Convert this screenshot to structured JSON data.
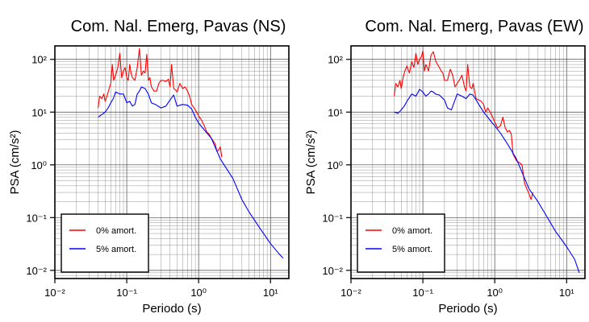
{
  "chart_data": [
    {
      "type": "line",
      "title": "Com. Nal. Emerg, Pavas (NS)",
      "xlabel": "Periodo (s)",
      "ylabel": "PSA (cm/s²)",
      "xscale": "log",
      "yscale": "log",
      "xlim": [
        0.01,
        18
      ],
      "ylim": [
        0.007,
        180
      ],
      "x_ticks": [
        "10⁻²",
        "10⁻¹",
        "10⁰",
        "10¹"
      ],
      "y_ticks": [
        "10⁻²",
        "10⁻¹",
        "10⁰",
        "10¹",
        "10²"
      ],
      "grid": true,
      "legend_position": "bottom-left",
      "series": [
        {
          "name": "0% amort.",
          "color": "#ff0000",
          "x": [
            0.04,
            0.042,
            0.045,
            0.048,
            0.05,
            0.053,
            0.056,
            0.06,
            0.063,
            0.066,
            0.07,
            0.075,
            0.08,
            0.085,
            0.09,
            0.095,
            0.1,
            0.105,
            0.11,
            0.115,
            0.12,
            0.13,
            0.14,
            0.15,
            0.16,
            0.17,
            0.18,
            0.19,
            0.2,
            0.21,
            0.22,
            0.24,
            0.26,
            0.28,
            0.3,
            0.32,
            0.35,
            0.38,
            0.4,
            0.42,
            0.45,
            0.48,
            0.5,
            0.55,
            0.6,
            0.65,
            0.7,
            0.75,
            0.8,
            0.9,
            1.0,
            1.1,
            1.2,
            1.3,
            1.4,
            1.5,
            1.7,
            1.8,
            1.9,
            2.0,
            2.1
          ],
          "y": [
            12,
            20,
            18,
            22,
            16,
            20,
            26,
            35,
            80,
            40,
            50,
            70,
            130,
            45,
            60,
            70,
            45,
            40,
            80,
            55,
            45,
            40,
            70,
            160,
            50,
            60,
            55,
            125,
            40,
            45,
            30,
            25,
            25,
            35,
            40,
            40,
            38,
            42,
            30,
            80,
            28,
            26,
            24,
            35,
            28,
            30,
            25,
            20,
            14,
            11,
            8.5,
            7,
            5.5,
            4.2,
            3.8,
            3.2,
            2.5,
            1.8,
            1.9,
            2.2,
            1.4
          ]
        },
        {
          "name": "5% amort.",
          "color": "#0000ff",
          "x": [
            0.04,
            0.045,
            0.05,
            0.055,
            0.06,
            0.065,
            0.07,
            0.08,
            0.09,
            0.1,
            0.11,
            0.12,
            0.13,
            0.14,
            0.15,
            0.16,
            0.18,
            0.2,
            0.22,
            0.25,
            0.3,
            0.35,
            0.4,
            0.45,
            0.5,
            0.6,
            0.7,
            0.8,
            0.9,
            1.0,
            1.2,
            1.5,
            2.0,
            3.0,
            4.0,
            5.0,
            7.0,
            10.0,
            13.0,
            15.0
          ],
          "y": [
            8,
            9,
            10,
            12,
            15,
            18,
            24,
            22,
            22,
            15,
            16,
            13,
            14,
            22,
            25,
            30,
            28,
            22,
            15,
            14,
            12,
            13,
            17,
            21,
            13,
            14,
            13.5,
            11.5,
            8,
            6.2,
            4.6,
            3.2,
            1.3,
            0.55,
            0.22,
            0.13,
            0.065,
            0.032,
            0.021,
            0.017
          ]
        }
      ]
    },
    {
      "type": "line",
      "title": "Com. Nal. Emerg, Pavas (EW)",
      "xlabel": "Periodo (s)",
      "ylabel": "PSA (cm/s²)",
      "xscale": "log",
      "yscale": "log",
      "xlim": [
        0.01,
        18
      ],
      "ylim": [
        0.007,
        180
      ],
      "x_ticks": [
        "10⁻²",
        "10⁻¹",
        "10⁰",
        "10¹"
      ],
      "y_ticks": [
        "10⁻²",
        "10⁻¹",
        "10⁰",
        "10¹",
        "10²"
      ],
      "grid": true,
      "legend_position": "bottom-left",
      "series": [
        {
          "name": "0% amort.",
          "color": "#ff0000",
          "x": [
            0.04,
            0.042,
            0.045,
            0.048,
            0.05,
            0.053,
            0.056,
            0.06,
            0.065,
            0.07,
            0.075,
            0.08,
            0.085,
            0.09,
            0.095,
            0.1,
            0.105,
            0.11,
            0.115,
            0.12,
            0.13,
            0.14,
            0.15,
            0.16,
            0.17,
            0.18,
            0.19,
            0.2,
            0.22,
            0.24,
            0.26,
            0.28,
            0.3,
            0.32,
            0.35,
            0.38,
            0.4,
            0.42,
            0.45,
            0.48,
            0.5,
            0.55,
            0.6,
            0.65,
            0.7,
            0.75,
            0.8,
            0.9,
            1.0,
            1.1,
            1.2,
            1.3,
            1.4,
            1.5,
            1.6,
            1.7,
            1.8,
            2.0,
            2.2,
            2.4,
            2.6,
            2.8,
            3.0,
            3.2,
            3.4
          ],
          "y": [
            20,
            35,
            30,
            40,
            28,
            45,
            60,
            75,
            55,
            90,
            70,
            130,
            80,
            100,
            110,
            145,
            60,
            80,
            70,
            60,
            120,
            140,
            95,
            80,
            70,
            60,
            55,
            40,
            40,
            65,
            50,
            30,
            35,
            40,
            50,
            30,
            25,
            80,
            30,
            28,
            35,
            18,
            17,
            16,
            14,
            10,
            12,
            9,
            6.5,
            5,
            5.5,
            8,
            5,
            4.2,
            4.5,
            3.8,
            1.6,
            1.2,
            1.1,
            1.0,
            0.45,
            0.35,
            0.28,
            0.22,
            0.3
          ]
        },
        {
          "name": "5% amort.",
          "color": "#0000ff",
          "x": [
            0.04,
            0.045,
            0.05,
            0.055,
            0.06,
            0.07,
            0.08,
            0.09,
            0.1,
            0.11,
            0.12,
            0.13,
            0.14,
            0.15,
            0.17,
            0.2,
            0.22,
            0.25,
            0.3,
            0.35,
            0.4,
            0.45,
            0.5,
            0.6,
            0.7,
            0.8,
            0.9,
            1.0,
            1.2,
            1.5,
            2.0,
            3.0,
            4.0,
            5.0,
            7.0,
            10.0,
            13.0,
            15.0
          ],
          "y": [
            10,
            9.5,
            11,
            13,
            16,
            22,
            20,
            27,
            24,
            20,
            22,
            25,
            24,
            22,
            21,
            17,
            12,
            11,
            22,
            20,
            18,
            22,
            21,
            14,
            10,
            8,
            6.5,
            5.5,
            4,
            2.5,
            1.3,
            0.35,
            0.2,
            0.12,
            0.055,
            0.028,
            0.016,
            0.009
          ]
        }
      ]
    }
  ]
}
